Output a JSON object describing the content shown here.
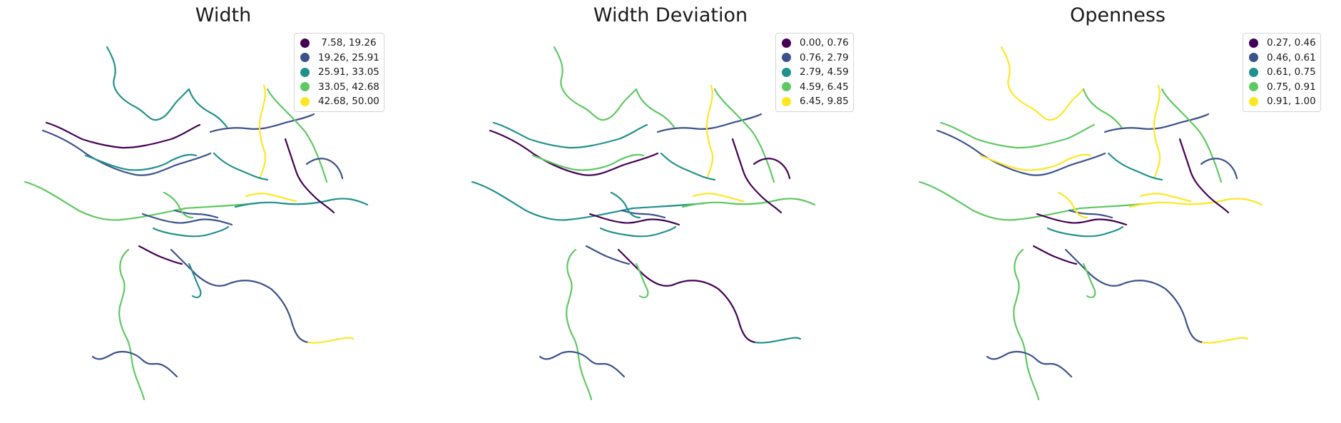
{
  "panels": [
    {
      "title": "Width",
      "legend": [
        {
          "label": " 7.58, 19.26",
          "color": "#440154"
        },
        {
          "label": "19.26, 25.91",
          "color": "#3b528b"
        },
        {
          "label": "25.91, 33.05",
          "color": "#21918c"
        },
        {
          "label": "33.05, 42.68",
          "color": "#5ec962"
        },
        {
          "label": "42.68, 50.00",
          "color": "#fde725"
        }
      ]
    },
    {
      "title": "Width Deviation",
      "legend": [
        {
          "label": "0.00, 0.76",
          "color": "#440154"
        },
        {
          "label": "0.76, 2.79",
          "color": "#3b528b"
        },
        {
          "label": "2.79, 4.59",
          "color": "#21918c"
        },
        {
          "label": "4.59, 6.45",
          "color": "#5ec962"
        },
        {
          "label": "6.45, 9.85",
          "color": "#fde725"
        }
      ]
    },
    {
      "title": "Openness",
      "legend": [
        {
          "label": "0.27, 0.46",
          "color": "#440154"
        },
        {
          "label": "0.46, 0.61",
          "color": "#3b528b"
        },
        {
          "label": "0.61, 0.75",
          "color": "#21918c"
        },
        {
          "label": "0.75, 0.91",
          "color": "#5ec962"
        },
        {
          "label": "0.91, 1.00",
          "color": "#fde725"
        }
      ]
    }
  ],
  "palette": [
    "#440154",
    "#3b528b",
    "#21918c",
    "#5ec962",
    "#fde725"
  ],
  "street_classes": {
    "width": [
      2,
      1,
      0,
      2,
      1,
      3,
      2,
      4,
      1,
      2,
      0,
      3,
      1,
      4,
      2,
      1,
      3,
      0,
      2,
      1,
      4,
      3,
      1,
      2
    ],
    "width_deviation": [
      3,
      0,
      2,
      3,
      1,
      2,
      3,
      4,
      0,
      2,
      1,
      3,
      0,
      2,
      3,
      1,
      3,
      0,
      2,
      1,
      4,
      2,
      0,
      3
    ],
    "openness": [
      4,
      1,
      3,
      4,
      1,
      3,
      4,
      4,
      0,
      2,
      0,
      3,
      1,
      4,
      3,
      1,
      3,
      0,
      2,
      1,
      4,
      4,
      1,
      3
    ]
  }
}
